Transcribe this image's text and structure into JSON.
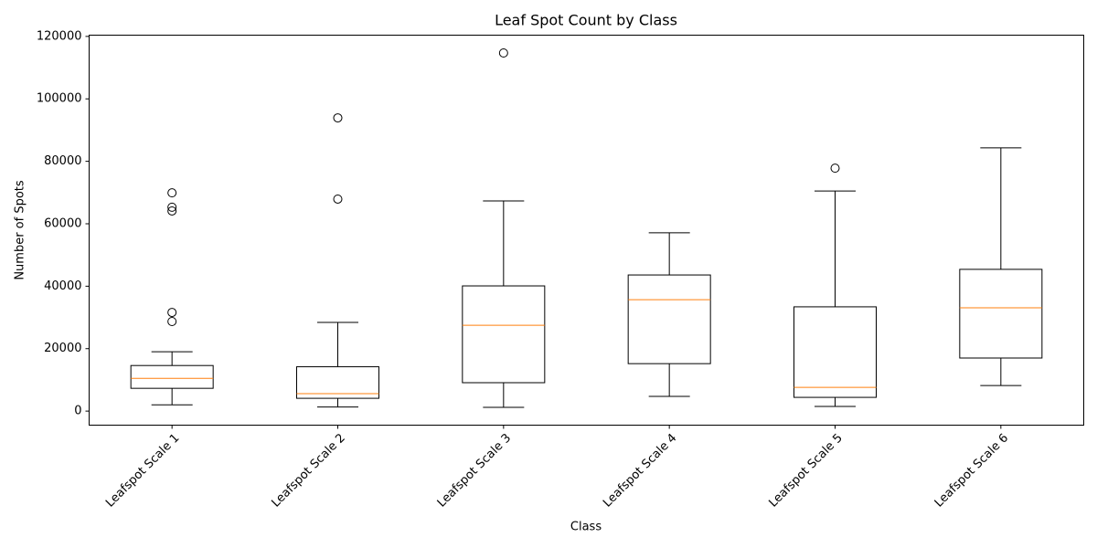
{
  "chart_data": {
    "type": "box",
    "title": "Leaf Spot Count by Class",
    "x_label": "Class",
    "y_label": "Number of Spots",
    "categories": [
      "Leafspot Scale 1",
      "Leafspot Scale 2",
      "Leafspot Scale 3",
      "Leafspot Scale 4",
      "Leafspot Scale 5",
      "Leafspot Scale 6"
    ],
    "boxes": [
      {
        "whislo": 2000,
        "q1": 7300,
        "med": 10500,
        "q3": 14600,
        "whishi": 19000,
        "fliers": [
          69900,
          65300,
          64100,
          31600,
          28700
        ]
      },
      {
        "whislo": 1300,
        "q1": 4100,
        "med": 5600,
        "q3": 14200,
        "whishi": 28400,
        "fliers": [
          93900,
          67900
        ]
      },
      {
        "whislo": 1200,
        "q1": 9100,
        "med": 27500,
        "q3": 40100,
        "whishi": 67300,
        "fliers": [
          114700
        ]
      },
      {
        "whislo": 4700,
        "q1": 15200,
        "med": 35700,
        "q3": 43600,
        "whishi": 57100,
        "fliers": []
      },
      {
        "whislo": 1500,
        "q1": 4400,
        "med": 7600,
        "q3": 33400,
        "whishi": 70500,
        "fliers": [
          77800
        ]
      },
      {
        "whislo": 8200,
        "q1": 17000,
        "med": 33100,
        "q3": 45400,
        "whishi": 84300,
        "fliers": []
      }
    ],
    "box_color": "#000000",
    "median_color": "#ff7f0e",
    "ylim": [
      -4500,
      120400
    ],
    "yticks": [
      0,
      20000,
      40000,
      60000,
      80000,
      100000,
      120000
    ]
  }
}
